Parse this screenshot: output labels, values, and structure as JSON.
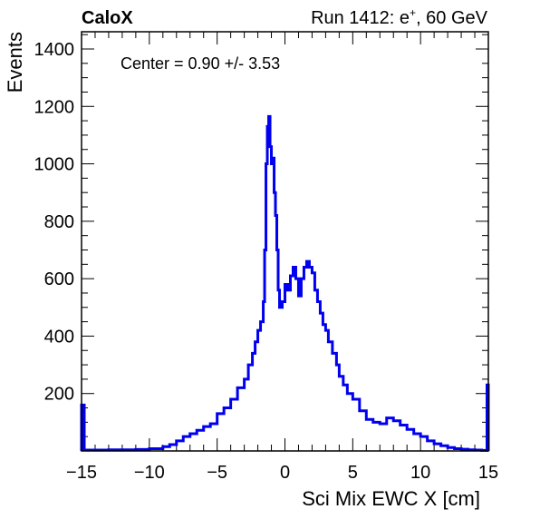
{
  "header": {
    "experiment": "CaloX",
    "run_label": "Run 1412: e",
    "run_sup": "+",
    "run_energy": ", 60 GeV"
  },
  "annotation": "Center = 0.90 +/- 3.53",
  "chart_data": {
    "type": "line",
    "style": "step-histogram",
    "series": [
      {
        "color": "#0000ee",
        "x": [
          -15,
          -14.8,
          -14,
          -13,
          -12,
          -11,
          -10,
          -9,
          -8.5,
          -8,
          -7.5,
          -7,
          -6.5,
          -6,
          -5.5,
          -5,
          -4.5,
          -4,
          -3.5,
          -3,
          -2.7,
          -2.4,
          -2.2,
          -2,
          -1.8,
          -1.6,
          -1.5,
          -1.4,
          -1.3,
          -1.2,
          -1.1,
          -1.0,
          -0.9,
          -0.8,
          -0.7,
          -0.6,
          -0.5,
          -0.4,
          -0.2,
          0,
          0.2,
          0.4,
          0.6,
          0.8,
          1.0,
          1.2,
          1.4,
          1.6,
          1.8,
          2.0,
          2.2,
          2.4,
          2.6,
          2.8,
          3.0,
          3.2,
          3.5,
          3.8,
          4.0,
          4.3,
          4.6,
          5.0,
          5.5,
          6.0,
          6.5,
          7.0,
          7.5,
          8.0,
          8.5,
          9.0,
          9.5,
          10,
          10.5,
          11,
          11.5,
          12,
          12.5,
          13,
          13.5,
          14,
          14.5,
          14.9
        ],
        "y": [
          160,
          3,
          3,
          4,
          4,
          5,
          8,
          15,
          22,
          35,
          50,
          60,
          72,
          85,
          95,
          130,
          150,
          180,
          220,
          250,
          300,
          340,
          380,
          420,
          450,
          520,
          700,
          1000,
          1130,
          1165,
          1060,
          1000,
          1020,
          900,
          820,
          700,
          560,
          500,
          520,
          580,
          560,
          610,
          640,
          600,
          540,
          600,
          640,
          660,
          640,
          620,
          560,
          520,
          480,
          440,
          420,
          380,
          340,
          300,
          260,
          230,
          200,
          180,
          140,
          110,
          100,
          95,
          115,
          105,
          90,
          75,
          60,
          50,
          35,
          25,
          18,
          12,
          8,
          6,
          4,
          3,
          2,
          230
        ]
      }
    ],
    "xlabel": "Sci Mix EWC X [cm]",
    "ylabel": "Events",
    "xlim": [
      -15,
      15
    ],
    "ylim": [
      0,
      1460
    ],
    "x_ticks": [
      -15,
      -10,
      -5,
      0,
      5,
      10,
      15
    ],
    "x_tick_labels": [
      "−15",
      "−10",
      "−5",
      "0",
      "5",
      "10",
      "15"
    ],
    "y_ticks": [
      200,
      400,
      600,
      800,
      1000,
      1200,
      1400
    ],
    "y_tick_labels": [
      "200",
      "400",
      "600",
      "800",
      "1000",
      "1200",
      "1400"
    ],
    "grid": false,
    "legend": "none"
  }
}
